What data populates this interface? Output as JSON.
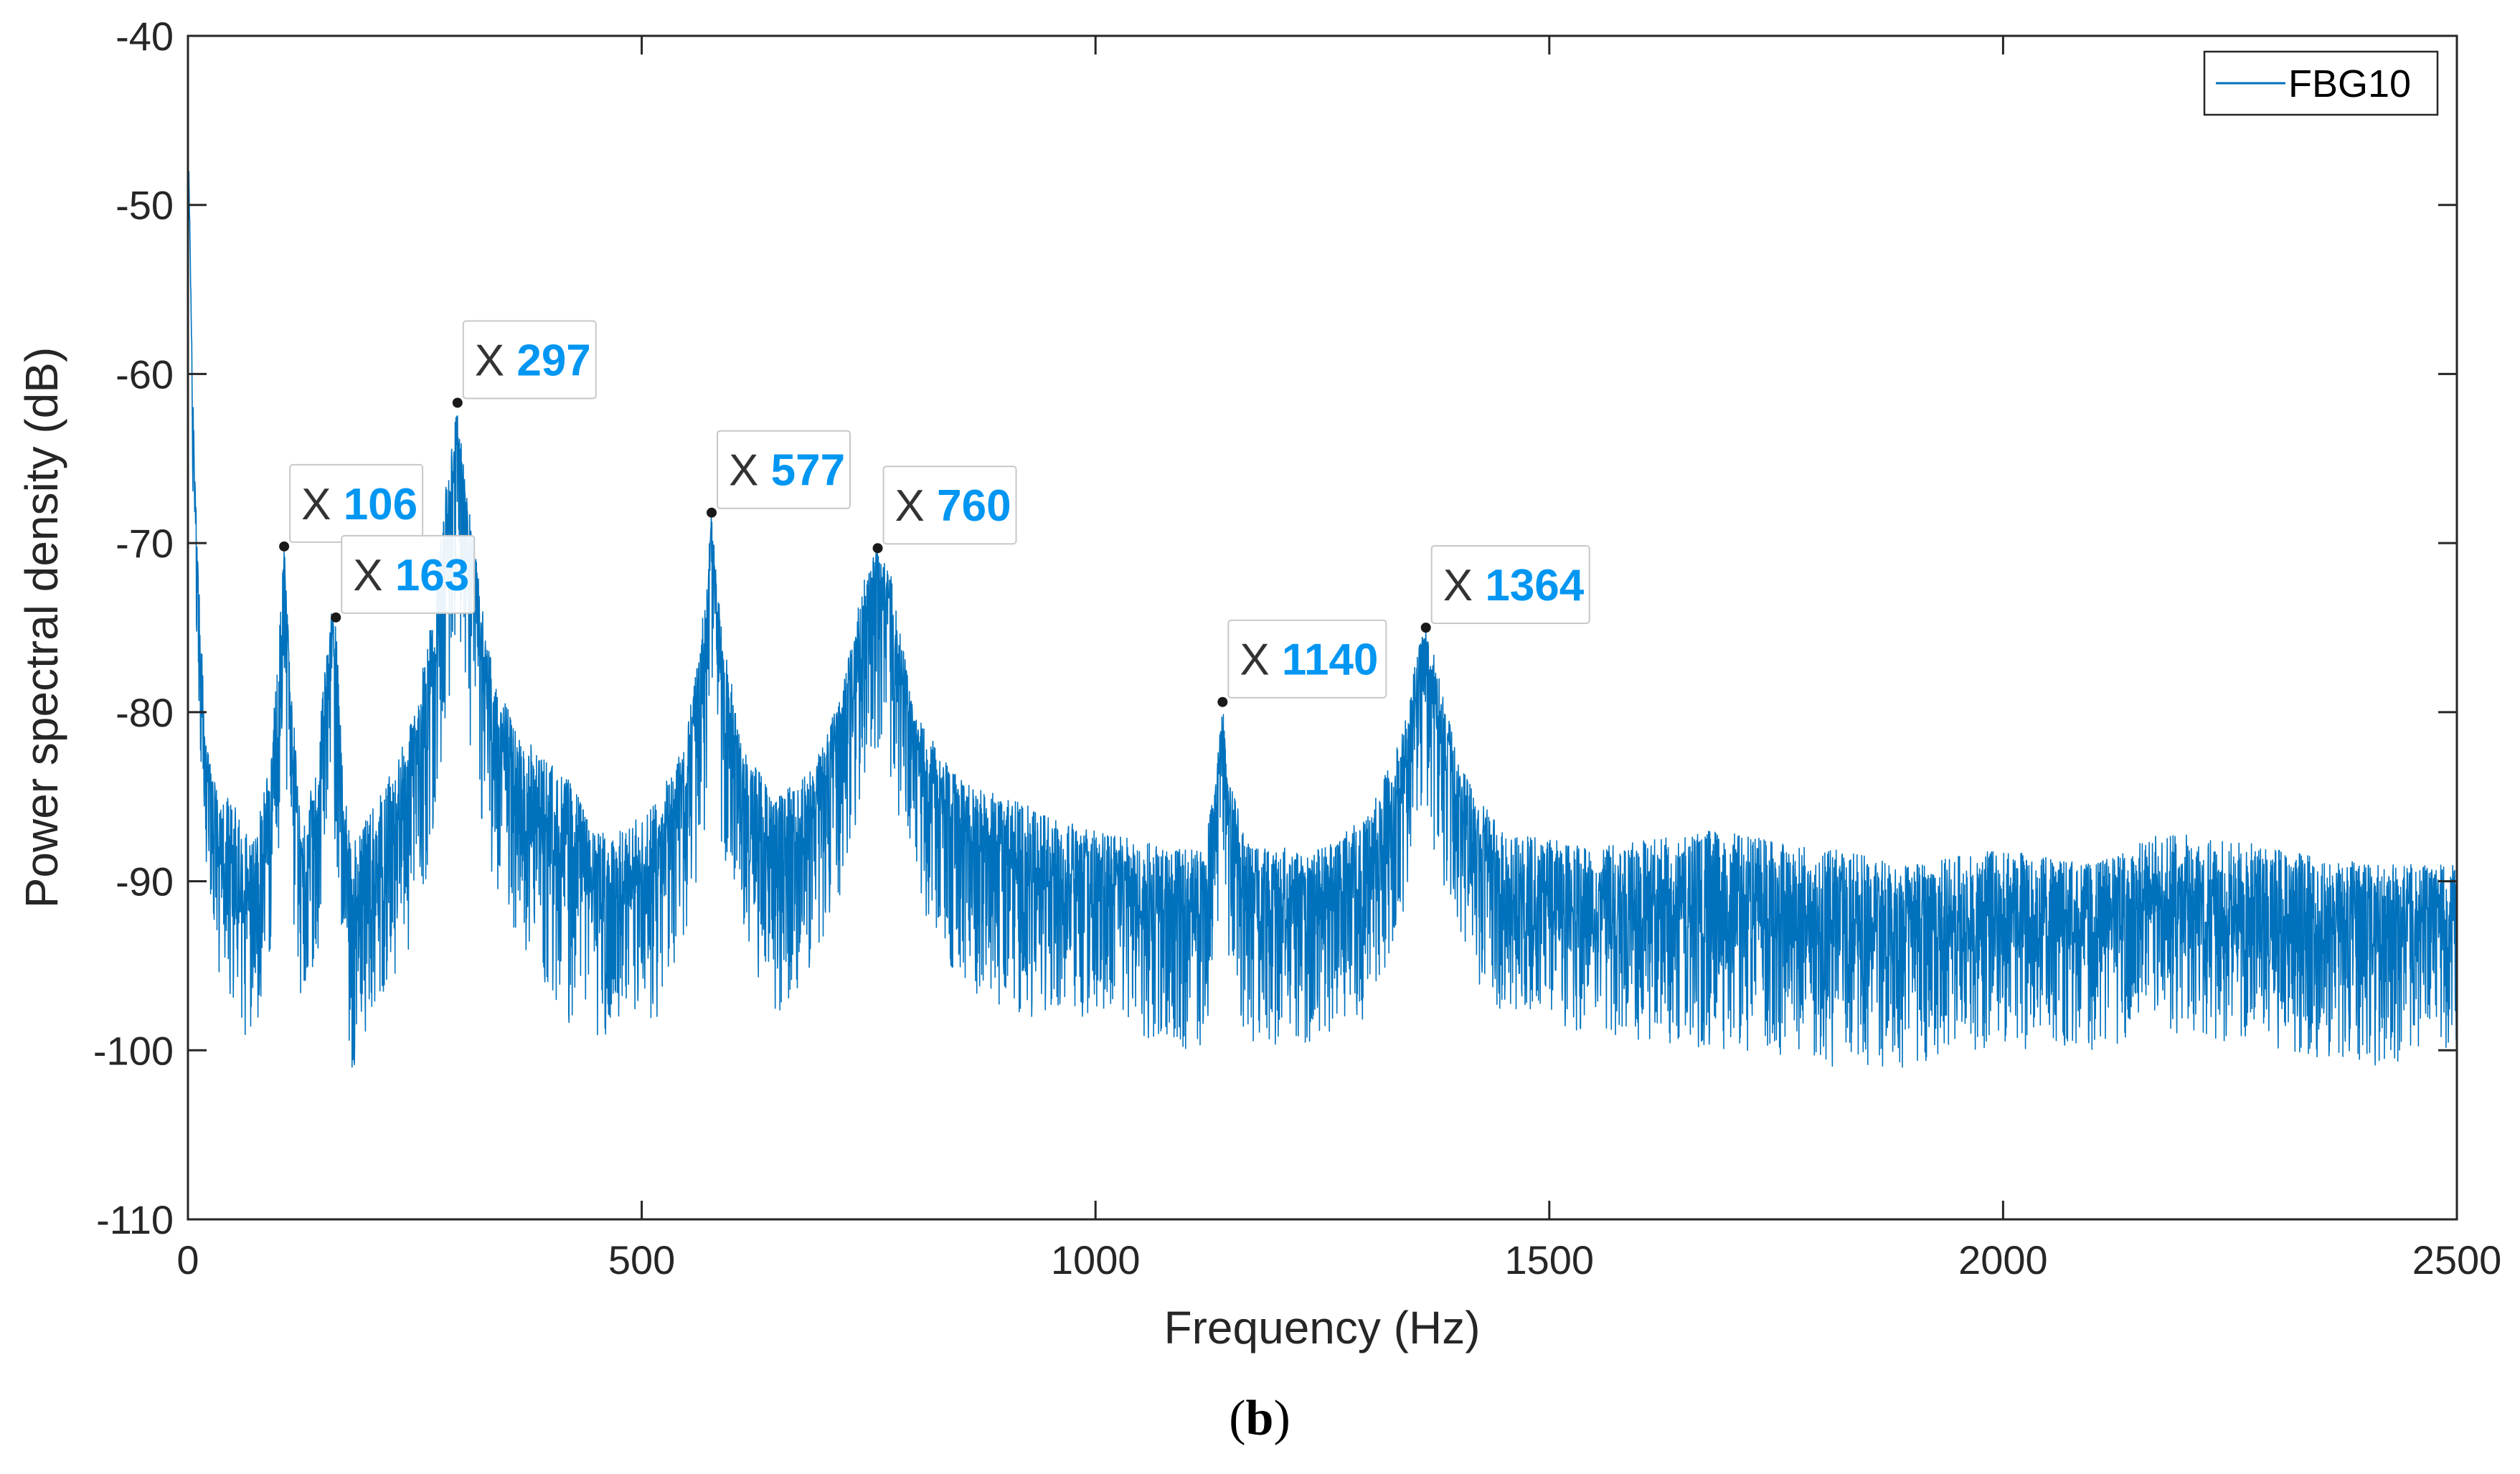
{
  "chart_data": {
    "type": "line",
    "xlabel": "Frequency (Hz)",
    "ylabel": "Power spectral density (dB)",
    "xlim": [
      0,
      2500
    ],
    "ylim": [
      -110,
      -40
    ],
    "xticks": [
      0,
      500,
      1000,
      1500,
      2000,
      2500
    ],
    "xtick_labels": [
      "0",
      "500",
      "1000",
      "1500",
      "2000",
      "2500"
    ],
    "yticks": [
      -110,
      -100,
      -90,
      -80,
      -70,
      -60,
      -50,
      -40
    ],
    "ytick_labels": [
      "-110",
      "-100",
      "-90",
      "-80",
      "-70",
      "-60",
      "-50",
      "-40"
    ],
    "grid": false,
    "legend": {
      "position": "top-right",
      "entries": [
        "FBG10"
      ]
    },
    "series": [
      {
        "name": "FBG10",
        "color": "#0072BD",
        "description": "noisy power spectrum; envelope points (Hz, dB) [center, top, bottom]",
        "envelope": [
          [
            1,
            -48,
            -48,
            -48
          ],
          [
            5,
            -62,
            -60,
            -66
          ],
          [
            10,
            -73,
            -70,
            -78
          ],
          [
            20,
            -84,
            -82,
            -90
          ],
          [
            35,
            -89,
            -85,
            -96
          ],
          [
            50,
            -91,
            -85,
            -97
          ],
          [
            60,
            -92,
            -87,
            -99
          ],
          [
            75,
            -91,
            -87,
            -100
          ],
          [
            90,
            -86,
            -83,
            -95
          ],
          [
            100,
            -79,
            -76,
            -88
          ],
          [
            106,
            -72,
            -70,
            -84
          ],
          [
            112,
            -80,
            -77,
            -90
          ],
          [
            125,
            -90,
            -86,
            -98
          ],
          [
            140,
            -88,
            -84,
            -96
          ],
          [
            150,
            -81,
            -78,
            -90
          ],
          [
            158,
            -76,
            -74,
            -86
          ],
          [
            163,
            -78,
            -74.5,
            -88
          ],
          [
            170,
            -86,
            -83,
            -96
          ],
          [
            180,
            -92,
            -88,
            -102
          ],
          [
            200,
            -91,
            -86,
            -98
          ],
          [
            230,
            -87,
            -83,
            -96
          ],
          [
            250,
            -83,
            -80,
            -93
          ],
          [
            270,
            -78,
            -74,
            -88
          ],
          [
            285,
            -70,
            -66,
            -81
          ],
          [
            297,
            -63,
            -62,
            -74
          ],
          [
            310,
            -71,
            -68,
            -82
          ],
          [
            330,
            -80,
            -76,
            -89
          ],
          [
            360,
            -85,
            -81,
            -93
          ],
          [
            400,
            -88,
            -83,
            -97
          ],
          [
            420,
            -89,
            -84,
            -99
          ],
          [
            430,
            -87,
            -85,
            -96
          ],
          [
            445,
            -91,
            -87,
            -99
          ],
          [
            480,
            -92,
            -87,
            -100
          ],
          [
            520,
            -89,
            -85,
            -98
          ],
          [
            550,
            -84,
            -81,
            -93
          ],
          [
            568,
            -77,
            -74,
            -88
          ],
          [
            577,
            -69,
            -68.2,
            -80
          ],
          [
            586,
            -77,
            -74,
            -88
          ],
          [
            610,
            -86,
            -82,
            -94
          ],
          [
            650,
            -89,
            -85,
            -98
          ],
          [
            690,
            -86,
            -83,
            -95
          ],
          [
            720,
            -82,
            -79,
            -91
          ],
          [
            745,
            -75,
            -72,
            -84
          ],
          [
            760,
            -71.5,
            -70.3,
            -82
          ],
          [
            775,
            -75,
            -72,
            -85
          ],
          [
            800,
            -83,
            -80,
            -91
          ],
          [
            850,
            -87,
            -84,
            -96
          ],
          [
            900,
            -89,
            -85,
            -98
          ],
          [
            1000,
            -91,
            -87,
            -99
          ],
          [
            1080,
            -92,
            -88,
            -100
          ],
          [
            1120,
            -91,
            -88,
            -100
          ],
          [
            1132,
            -87,
            -84,
            -95
          ],
          [
            1140,
            -81,
            -79.4,
            -90
          ],
          [
            1148,
            -87,
            -84,
            -96
          ],
          [
            1170,
            -92,
            -88,
            -100
          ],
          [
            1250,
            -92,
            -88,
            -100
          ],
          [
            1300,
            -90,
            -86,
            -98
          ],
          [
            1340,
            -84,
            -81,
            -92
          ],
          [
            1355,
            -78,
            -76,
            -87
          ],
          [
            1364,
            -76,
            -75,
            -85
          ],
          [
            1375,
            -80,
            -77,
            -89
          ],
          [
            1400,
            -86,
            -83,
            -93
          ],
          [
            1420,
            -88,
            -85,
            -96
          ],
          [
            1450,
            -91,
            -87,
            -98
          ],
          [
            1550,
            -92,
            -88,
            -99
          ],
          [
            1680,
            -92,
            -87,
            -100
          ],
          [
            1800,
            -93,
            -88,
            -101
          ],
          [
            1900,
            -93,
            -89,
            -101
          ],
          [
            2000,
            -93,
            -88,
            -100
          ],
          [
            2100,
            -93,
            -89,
            -100
          ],
          [
            2180,
            -92,
            -87,
            -99
          ],
          [
            2300,
            -93,
            -88,
            -100
          ],
          [
            2400,
            -93,
            -89,
            -101
          ],
          [
            2500,
            -93,
            -89,
            -100
          ]
        ]
      }
    ],
    "annotations": [
      {
        "prefix": "X",
        "label": "106",
        "x": 106,
        "y": -70.2
      },
      {
        "prefix": "X",
        "label": "163",
        "x": 163,
        "y": -74.4
      },
      {
        "prefix": "X",
        "label": "297",
        "x": 297,
        "y": -61.7
      },
      {
        "prefix": "X",
        "label": "577",
        "x": 577,
        "y": -68.2
      },
      {
        "prefix": "X",
        "label": "760",
        "x": 760,
        "y": -70.3
      },
      {
        "prefix": "X",
        "label": "1140",
        "x": 1140,
        "y": -79.4
      },
      {
        "prefix": "X",
        "label": "1364",
        "x": 1364,
        "y": -75.0
      }
    ],
    "annotation_value_color": "#0096F2"
  },
  "caption": {
    "open": "(",
    "letter": "b",
    "close": ")"
  }
}
